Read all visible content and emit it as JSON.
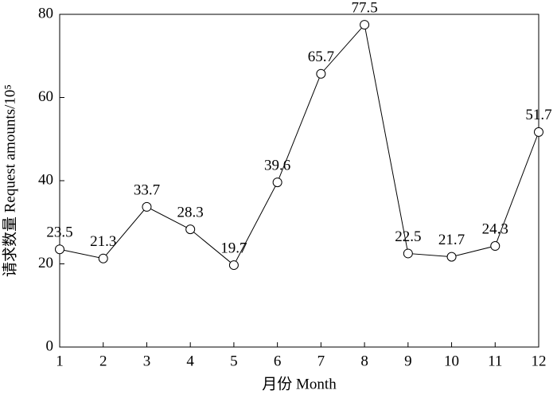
{
  "chart_data": {
    "type": "line",
    "xlabel": "月份 Month",
    "ylabel": "请求数量 Request amounts/10⁵",
    "x": [
      1,
      2,
      3,
      4,
      5,
      6,
      7,
      8,
      9,
      10,
      11,
      12
    ],
    "series": [
      {
        "color": "#000000",
        "values": [
          23.5,
          21.3,
          33.7,
          28.3,
          19.7,
          39.6,
          65.7,
          77.5,
          22.5,
          21.7,
          24.3,
          51.7
        ]
      }
    ],
    "xlim": [
      1,
      12
    ],
    "xticks": [
      1,
      2,
      3,
      4,
      5,
      6,
      7,
      8,
      9,
      10,
      11,
      12
    ],
    "ylim": [
      0,
      80
    ],
    "yticks": [
      0,
      20,
      40,
      60,
      80
    ]
  }
}
